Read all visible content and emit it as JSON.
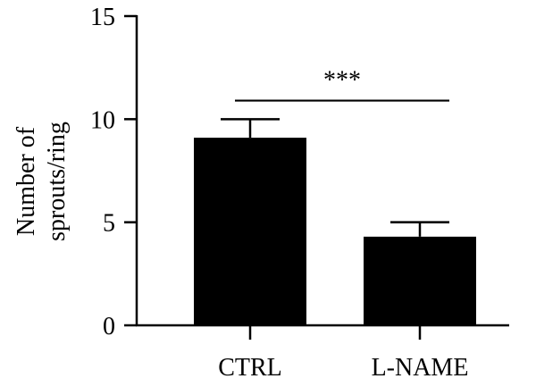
{
  "chart_data": {
    "type": "bar",
    "title": "",
    "xlabel": "",
    "ylabel_lines": [
      "Number of",
      "sprouts/ring"
    ],
    "categories": [
      "CTRL",
      "L-NAME"
    ],
    "values": [
      9.1,
      4.3
    ],
    "errors": [
      0.9,
      0.7
    ],
    "ylim": [
      0,
      15
    ],
    "yticks": [
      0,
      5,
      10,
      15
    ],
    "grid": false,
    "significance": {
      "between": [
        0,
        1
      ],
      "label": "***",
      "y": 10.9
    },
    "colors": {
      "bar": "#000000",
      "axis": "#000000"
    }
  }
}
